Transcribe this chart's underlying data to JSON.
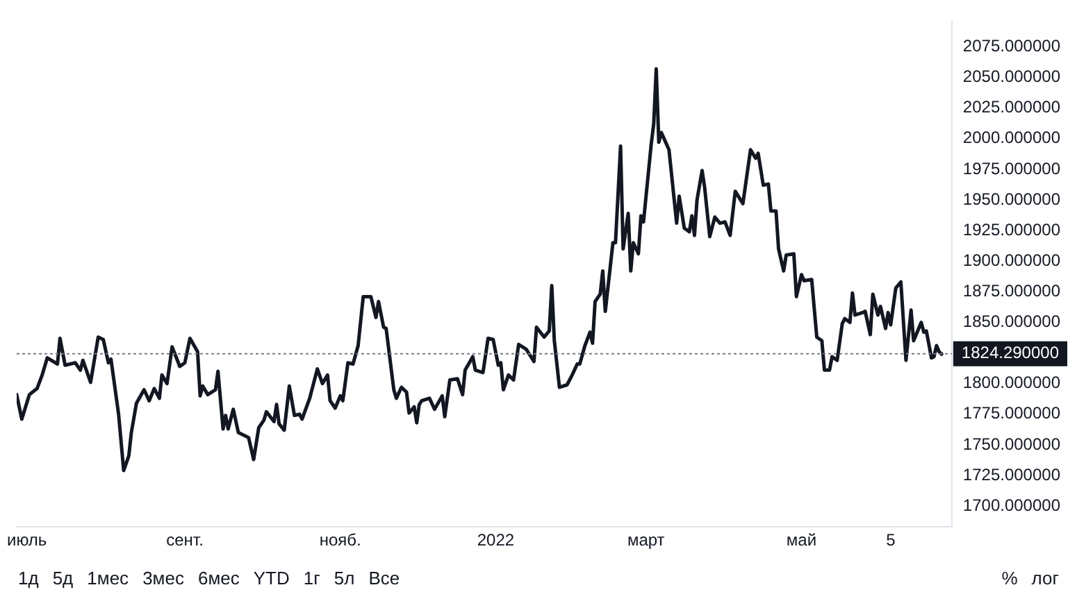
{
  "chart_data": {
    "type": "line",
    "x": [
      "2021-06-27",
      "2021-06-29",
      "2021-07-02",
      "2021-07-05",
      "2021-07-07",
      "2021-07-09",
      "2021-07-13",
      "2021-07-14",
      "2021-07-16",
      "2021-07-20",
      "2021-07-22",
      "2021-07-23",
      "2021-07-26",
      "2021-07-29",
      "2021-07-31",
      "2021-08-02",
      "2021-08-03",
      "2021-08-06",
      "2021-08-08",
      "2021-08-10",
      "2021-08-11",
      "2021-08-13",
      "2021-08-16",
      "2021-08-18",
      "2021-08-20",
      "2021-08-22",
      "2021-08-23",
      "2021-08-25",
      "2021-08-27",
      "2021-08-30",
      "2021-09-01",
      "2021-09-03",
      "2021-09-06",
      "2021-09-07",
      "2021-09-08",
      "2021-09-10",
      "2021-09-13",
      "2021-09-14",
      "2021-09-16",
      "2021-09-17",
      "2021-09-18",
      "2021-09-20",
      "2021-09-22",
      "2021-09-26",
      "2021-09-28",
      "2021-09-30",
      "2021-10-02",
      "2021-10-03",
      "2021-10-06",
      "2021-10-07",
      "2021-10-08",
      "2021-10-10",
      "2021-10-12",
      "2021-10-14",
      "2021-10-16",
      "2021-10-17",
      "2021-10-20",
      "2021-10-23",
      "2021-10-25",
      "2021-10-27",
      "2021-10-28",
      "2021-10-30",
      "2021-11-01",
      "2021-11-02",
      "2021-11-04",
      "2021-11-06",
      "2021-11-08",
      "2021-11-10",
      "2021-11-13",
      "2021-11-15",
      "2021-11-16",
      "2021-11-18",
      "2021-11-19",
      "2021-11-22",
      "2021-11-23",
      "2021-11-25",
      "2021-11-27",
      "2021-11-28",
      "2021-11-30",
      "2021-12-01",
      "2021-12-02",
      "2021-12-03",
      "2021-12-06",
      "2021-12-08",
      "2021-12-11",
      "2021-12-12",
      "2021-12-14",
      "2021-12-17",
      "2021-12-19",
      "2021-12-20",
      "2021-12-23",
      "2021-12-24",
      "2021-12-27",
      "2021-12-29",
      "2021-12-31",
      "2022-01-02",
      "2022-01-03",
      "2022-01-04",
      "2022-01-06",
      "2022-01-08",
      "2022-01-10",
      "2022-01-13",
      "2022-01-16",
      "2022-01-17",
      "2022-01-20",
      "2022-01-22",
      "2022-01-23",
      "2022-01-24",
      "2022-01-26",
      "2022-01-29",
      "2022-01-31",
      "2022-02-02",
      "2022-02-03",
      "2022-02-05",
      "2022-02-07",
      "2022-02-08",
      "2022-02-09",
      "2022-02-11",
      "2022-02-12",
      "2022-02-13",
      "2022-02-16",
      "2022-02-17",
      "2022-02-19",
      "2022-02-20",
      "2022-02-22",
      "2022-02-23",
      "2022-02-24",
      "2022-02-26",
      "2022-02-27",
      "2022-02-28",
      "2022-03-02",
      "2022-03-03",
      "2022-03-04",
      "2022-03-05",
      "2022-03-06",
      "2022-03-07",
      "2022-03-10",
      "2022-03-13",
      "2022-03-14",
      "2022-03-16",
      "2022-03-18",
      "2022-03-19",
      "2022-03-20",
      "2022-03-21",
      "2022-03-23",
      "2022-03-24",
      "2022-03-26",
      "2022-03-28",
      "2022-03-30",
      "2022-04-01",
      "2022-04-03",
      "2022-04-05",
      "2022-04-08",
      "2022-04-11",
      "2022-04-13",
      "2022-04-14",
      "2022-04-16",
      "2022-04-18",
      "2022-04-19",
      "2022-04-21",
      "2022-04-22",
      "2022-04-24",
      "2022-04-25",
      "2022-04-28",
      "2022-04-29",
      "2022-05-01",
      "2022-05-02",
      "2022-05-05",
      "2022-05-07",
      "2022-05-09",
      "2022-05-10",
      "2022-05-12",
      "2022-05-13",
      "2022-05-15",
      "2022-05-17",
      "2022-05-18",
      "2022-05-20",
      "2022-05-21",
      "2022-05-22",
      "2022-05-25",
      "2022-05-26",
      "2022-05-28",
      "2022-05-29",
      "2022-05-31",
      "2022-06-01",
      "2022-06-03",
      "2022-06-04",
      "2022-06-05",
      "2022-06-07",
      "2022-06-09",
      "2022-06-11",
      "2022-06-13",
      "2022-06-14",
      "2022-06-17",
      "2022-06-18",
      "2022-06-19",
      "2022-06-21",
      "2022-06-22",
      "2022-06-23",
      "2022-06-24",
      "2022-06-25"
    ],
    "series": [
      {
        "color": "#131722",
        "values": [
          1791,
          1771,
          1791,
          1796,
          1807,
          1821,
          1816,
          1837,
          1815,
          1817,
          1811,
          1819,
          1801,
          1838,
          1836,
          1817,
          1820,
          1775,
          1729,
          1741,
          1760,
          1784,
          1795,
          1786,
          1796,
          1788,
          1807,
          1800,
          1830,
          1814,
          1817,
          1837,
          1826,
          1790,
          1798,
          1791,
          1795,
          1810,
          1763,
          1774,
          1763,
          1779,
          1760,
          1756,
          1738,
          1764,
          1770,
          1777,
          1769,
          1783,
          1767,
          1762,
          1798,
          1774,
          1775,
          1771,
          1788,
          1812,
          1800,
          1807,
          1786,
          1780,
          1790,
          1786,
          1817,
          1816,
          1831,
          1871,
          1871,
          1854,
          1867,
          1846,
          1845,
          1795,
          1788,
          1797,
          1793,
          1776,
          1781,
          1768,
          1783,
          1786,
          1788,
          1779,
          1790,
          1773,
          1803,
          1804,
          1791,
          1811,
          1822,
          1811,
          1809,
          1837,
          1836,
          1815,
          1817,
          1795,
          1807,
          1803,
          1832,
          1828,
          1818,
          1846,
          1838,
          1843,
          1880,
          1835,
          1797,
          1799,
          1807,
          1816,
          1816,
          1831,
          1842,
          1833,
          1867,
          1873,
          1892,
          1859,
          1915,
          1915,
          1994,
          1910,
          1939,
          1892,
          1915,
          1906,
          1937,
          1932,
          1974,
          1995,
          2012,
          2057,
          1997,
          2005,
          1991,
          1931,
          1953,
          1927,
          1924,
          1937,
          1921,
          1950,
          1974,
          1960,
          1920,
          1936,
          1931,
          1932,
          1921,
          1957,
          1947,
          1991,
          1984,
          1988,
          1962,
          1963,
          1941,
          1941,
          1910,
          1892,
          1905,
          1906,
          1871,
          1889,
          1884,
          1885,
          1838,
          1835,
          1811,
          1811,
          1822,
          1819,
          1849,
          1853,
          1850,
          1874,
          1856,
          1858,
          1859,
          1840,
          1873,
          1856,
          1863,
          1845,
          1858,
          1848,
          1878,
          1883,
          1819,
          1860,
          1835,
          1850,
          1842,
          1843,
          1821,
          1822,
          1831,
          1826,
          1824
        ]
      }
    ],
    "xlim": [
      "2021-06-27",
      "2022-06-29"
    ],
    "xticks": [
      {
        "value": "2021-07-01",
        "label": "июль"
      },
      {
        "value": "2021-09-01",
        "label": "сент."
      },
      {
        "value": "2021-11-01",
        "label": "нояб."
      },
      {
        "value": "2022-01-01",
        "label": "2022"
      },
      {
        "value": "2022-03-01",
        "label": "март"
      },
      {
        "value": "2022-05-01",
        "label": "май"
      },
      {
        "value": "2022-06-05",
        "label": "5"
      }
    ],
    "ylim": [
      1683,
      2096
    ],
    "yticks": [
      {
        "value": 1700,
        "label": "1700.000000"
      },
      {
        "value": 1725,
        "label": "1725.000000"
      },
      {
        "value": 1750,
        "label": "1750.000000"
      },
      {
        "value": 1775,
        "label": "1775.000000"
      },
      {
        "value": 1800,
        "label": "1800.000000"
      },
      {
        "value": 1850,
        "label": "1850.000000"
      },
      {
        "value": 1875,
        "label": "1875.000000"
      },
      {
        "value": 1900,
        "label": "1900.000000"
      },
      {
        "value": 1925,
        "label": "1925.000000"
      },
      {
        "value": 1950,
        "label": "1950.000000"
      },
      {
        "value": 1975,
        "label": "1975.000000"
      },
      {
        "value": 2000,
        "label": "2000.000000"
      },
      {
        "value": 2025,
        "label": "2025.000000"
      },
      {
        "value": 2050,
        "label": "2050.000000"
      },
      {
        "value": 2075,
        "label": "2075.000000"
      }
    ],
    "ref_lines": [
      {
        "axis": "y",
        "value": 1824.29,
        "label": "1824.290000",
        "color": "#787b86",
        "line_style": "dotted"
      }
    ],
    "grid": false,
    "legend": false,
    "marker": "none",
    "line_style": "solid",
    "annotations": [
      "1д",
      "5д",
      "1мес",
      "3мес",
      "6мес",
      "YTD",
      "1г",
      "5л",
      "Все",
      "%",
      "лог"
    ]
  }
}
